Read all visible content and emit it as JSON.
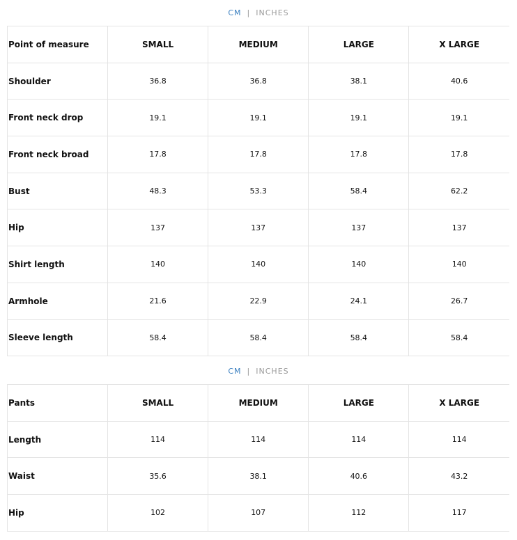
{
  "unit_toggle": {
    "cm": "CM",
    "separator": "|",
    "inches": "INCHES",
    "active": "CM",
    "active_color": "#3a7fc0"
  },
  "tables": [
    {
      "headers": [
        "Point of measure",
        "SMALL",
        "MEDIUM",
        "LARGE",
        "X LARGE"
      ],
      "rows": [
        [
          "Shoulder",
          "36.8",
          "36.8",
          "38.1",
          "40.6"
        ],
        [
          "Front neck drop",
          "19.1",
          "19.1",
          "19.1",
          "19.1"
        ],
        [
          "Front neck broad",
          "17.8",
          "17.8",
          "17.8",
          "17.8"
        ],
        [
          "Bust",
          "48.3",
          "53.3",
          "58.4",
          "62.2"
        ],
        [
          "Hip",
          "137",
          "137",
          "137",
          "137"
        ],
        [
          "Shirt length",
          "140",
          "140",
          "140",
          "140"
        ],
        [
          "Armhole",
          "21.6",
          "22.9",
          "24.1",
          "26.7"
        ],
        [
          "Sleeve length",
          "58.4",
          "58.4",
          "58.4",
          "58.4"
        ]
      ]
    },
    {
      "headers": [
        "Pants",
        "SMALL",
        "MEDIUM",
        "LARGE",
        "X LARGE"
      ],
      "rows": [
        [
          "Length",
          "114",
          "114",
          "114",
          "114"
        ],
        [
          "Waist",
          "35.6",
          "38.1",
          "40.6",
          "43.2"
        ],
        [
          "Hip",
          "102",
          "107",
          "112",
          "117"
        ]
      ]
    }
  ]
}
